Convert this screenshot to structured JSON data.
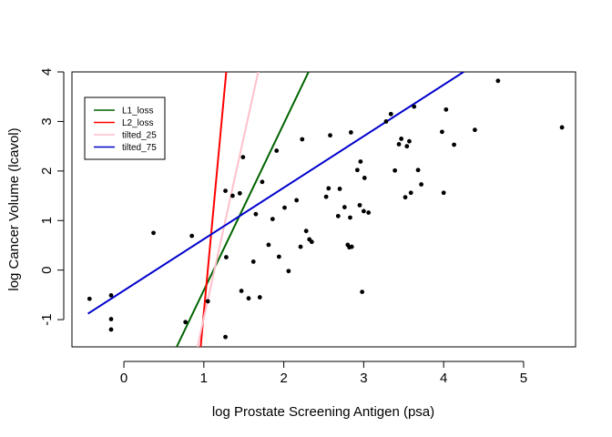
{
  "chart_data": {
    "type": "scatter",
    "title": "",
    "xlabel": "log Prostate Screening Antigen (psa)",
    "ylabel": "log Cancer Volume (lcavol)",
    "xlim": [
      -0.65,
      5.65
    ],
    "ylim": [
      -1.55,
      4.0
    ],
    "x_ticks": [
      0,
      1,
      2,
      3,
      4,
      5
    ],
    "y_ticks": [
      -1,
      0,
      1,
      2,
      3,
      4
    ],
    "grid": false,
    "legend_position": "top-left",
    "points": [
      {
        "x": -0.43,
        "y": -0.58
      },
      {
        "x": -0.16,
        "y": -0.51
      },
      {
        "x": -0.16,
        "y": -0.99
      },
      {
        "x": -0.16,
        "y": -1.2
      },
      {
        "x": 0.37,
        "y": 0.75
      },
      {
        "x": 0.77,
        "y": -1.05
      },
      {
        "x": 0.85,
        "y": 0.69
      },
      {
        "x": 1.05,
        "y": -0.63
      },
      {
        "x": 1.27,
        "y": 1.6
      },
      {
        "x": 1.27,
        "y": -1.35
      },
      {
        "x": 1.28,
        "y": 0.26
      },
      {
        "x": 1.36,
        "y": 1.5
      },
      {
        "x": 1.45,
        "y": 1.55
      },
      {
        "x": 1.47,
        "y": -0.42
      },
      {
        "x": 1.49,
        "y": 2.28
      },
      {
        "x": 1.56,
        "y": -0.57
      },
      {
        "x": 1.62,
        "y": 0.17
      },
      {
        "x": 1.65,
        "y": 1.13
      },
      {
        "x": 1.7,
        "y": -0.55
      },
      {
        "x": 1.73,
        "y": 1.78
      },
      {
        "x": 1.81,
        "y": 0.51
      },
      {
        "x": 1.86,
        "y": 1.03
      },
      {
        "x": 1.91,
        "y": 2.41
      },
      {
        "x": 1.94,
        "y": 0.27
      },
      {
        "x": 2.01,
        "y": 1.26
      },
      {
        "x": 2.06,
        "y": -0.02
      },
      {
        "x": 2.16,
        "y": 1.41
      },
      {
        "x": 2.21,
        "y": 0.47
      },
      {
        "x": 2.23,
        "y": 2.64
      },
      {
        "x": 2.28,
        "y": 0.79
      },
      {
        "x": 2.32,
        "y": 0.62
      },
      {
        "x": 2.35,
        "y": 0.57
      },
      {
        "x": 2.53,
        "y": 1.48
      },
      {
        "x": 2.56,
        "y": 1.65
      },
      {
        "x": 2.58,
        "y": 2.72
      },
      {
        "x": 2.68,
        "y": 1.09
      },
      {
        "x": 2.7,
        "y": 1.64
      },
      {
        "x": 2.76,
        "y": 1.27
      },
      {
        "x": 2.8,
        "y": 0.51
      },
      {
        "x": 2.82,
        "y": 0.46
      },
      {
        "x": 2.83,
        "y": 1.06
      },
      {
        "x": 2.84,
        "y": 2.78
      },
      {
        "x": 2.85,
        "y": 0.47
      },
      {
        "x": 2.92,
        "y": 2.02
      },
      {
        "x": 2.95,
        "y": 1.31
      },
      {
        "x": 2.96,
        "y": 2.19
      },
      {
        "x": 2.98,
        "y": -0.44
      },
      {
        "x": 3.0,
        "y": 1.19
      },
      {
        "x": 3.01,
        "y": 1.86
      },
      {
        "x": 3.06,
        "y": 1.16
      },
      {
        "x": 3.28,
        "y": 3.0
      },
      {
        "x": 3.34,
        "y": 3.15
      },
      {
        "x": 3.39,
        "y": 2.01
      },
      {
        "x": 3.44,
        "y": 2.54
      },
      {
        "x": 3.47,
        "y": 2.65
      },
      {
        "x": 3.52,
        "y": 1.47
      },
      {
        "x": 3.54,
        "y": 2.5
      },
      {
        "x": 3.57,
        "y": 2.6
      },
      {
        "x": 3.59,
        "y": 1.56
      },
      {
        "x": 3.63,
        "y": 3.3
      },
      {
        "x": 3.68,
        "y": 2.02
      },
      {
        "x": 3.72,
        "y": 1.73
      },
      {
        "x": 3.98,
        "y": 2.79
      },
      {
        "x": 4.0,
        "y": 1.56
      },
      {
        "x": 4.03,
        "y": 3.24
      },
      {
        "x": 4.13,
        "y": 2.53
      },
      {
        "x": 4.39,
        "y": 2.83
      },
      {
        "x": 4.68,
        "y": 3.82
      },
      {
        "x": 5.48,
        "y": 2.88
      }
    ],
    "series": [
      {
        "name": "L1_loss",
        "color": "#006400",
        "type": "line",
        "x": [
          0.66,
          2.31
        ],
        "y": [
          -1.55,
          4.0
        ]
      },
      {
        "name": "L2_loss",
        "color": "#ff0000",
        "type": "line",
        "x": [
          0.96,
          1.28
        ],
        "y": [
          -1.55,
          4.0
        ]
      },
      {
        "name": "tilted_25",
        "color": "#ffc0cb",
        "type": "line",
        "x": [
          0.92,
          1.68
        ],
        "y": [
          -1.55,
          4.0
        ]
      },
      {
        "name": "tilted_75",
        "color": "#0000cd",
        "type": "line",
        "x": [
          -0.45,
          4.25
        ],
        "y": [
          -0.88,
          4.0
        ]
      }
    ]
  }
}
